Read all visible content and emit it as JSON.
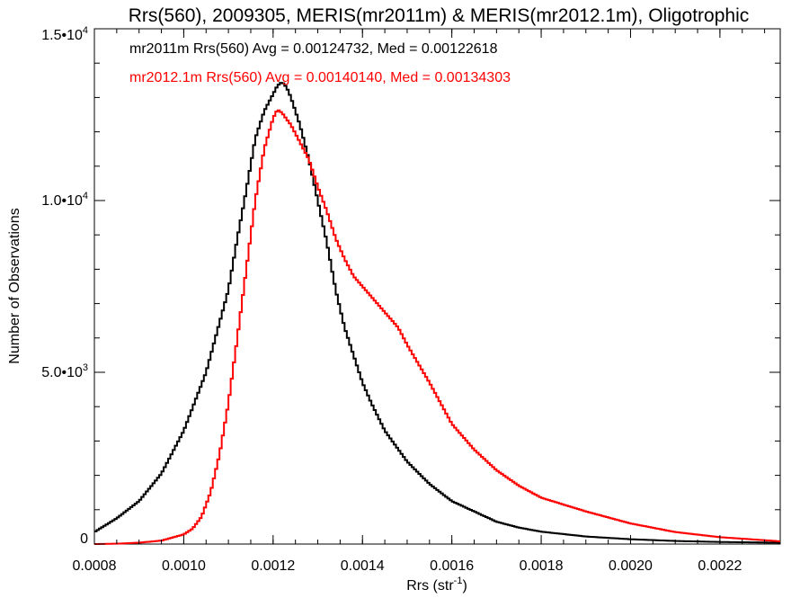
{
  "chart_data": {
    "type": "line",
    "title": "Rrs(560), 2009305, MERIS(mr2011m) & MERIS(mr2012.1m), Oligotrophic",
    "xlabel": "Rrs (str",
    "xlabel_sup": "-1",
    "xlabel_end": ")",
    "ylabel": "Number of Observations",
    "xlim": [
      0.0008,
      0.002335
    ],
    "ylim": [
      0,
      15000
    ],
    "grid": false,
    "x_ticks": [
      {
        "value": 0.0008,
        "label": "0.0008"
      },
      {
        "value": 0.001,
        "label": "0.0010"
      },
      {
        "value": 0.0012,
        "label": "0.0012"
      },
      {
        "value": 0.0014,
        "label": "0.0014"
      },
      {
        "value": 0.0016,
        "label": "0.0016"
      },
      {
        "value": 0.0018,
        "label": "0.0018"
      },
      {
        "value": 0.002,
        "label": "0.0020"
      },
      {
        "value": 0.0022,
        "label": "0.0022"
      }
    ],
    "y_ticks": [
      {
        "value": 0,
        "label": "0",
        "sup": ""
      },
      {
        "value": 5000,
        "label": "5.0•10",
        "sup": "3"
      },
      {
        "value": 10000,
        "label": "1.0•10",
        "sup": "4"
      },
      {
        "value": 15000,
        "label": "1.5•10",
        "sup": "4"
      }
    ],
    "annotations": [
      {
        "text": "mr2011m Rrs(560) Avg = 0.00124732, Med = 0.00122618",
        "color": "#000000"
      },
      {
        "text": "mr2012.1m Rrs(560) Avg = 0.00140140, Med = 0.00134303",
        "color": "#ff0000"
      }
    ],
    "series": [
      {
        "color": "#000000",
        "x": [
          0.0008,
          0.00085,
          0.0009,
          0.00095,
          0.001,
          0.00105,
          0.0011,
          0.00112,
          0.00114,
          0.00116,
          0.00118,
          0.0012,
          0.00121,
          0.00122,
          0.00123,
          0.00124,
          0.00126,
          0.00128,
          0.0013,
          0.00132,
          0.00134,
          0.00136,
          0.00138,
          0.0014,
          0.00142,
          0.00145,
          0.0015,
          0.00155,
          0.0016,
          0.00165,
          0.0017,
          0.00175,
          0.0018,
          0.0019,
          0.002,
          0.0021,
          0.0022,
          0.002335
        ],
        "y": [
          350,
          750,
          1250,
          2050,
          3300,
          5000,
          7400,
          8900,
          10300,
          11800,
          12600,
          13100,
          13350,
          13450,
          13300,
          13000,
          12200,
          11200,
          10000,
          8800,
          7400,
          6300,
          5500,
          4700,
          4100,
          3300,
          2400,
          1750,
          1250,
          950,
          650,
          480,
          360,
          220,
          140,
          90,
          60,
          40
        ]
      },
      {
        "color": "#ff0000",
        "x": [
          0.0008,
          0.00085,
          0.0009,
          0.00095,
          0.001,
          0.00102,
          0.00104,
          0.00106,
          0.00108,
          0.0011,
          0.00112,
          0.00114,
          0.00116,
          0.00118,
          0.0012,
          0.00121,
          0.00122,
          0.00124,
          0.00126,
          0.00128,
          0.0013,
          0.00132,
          0.00134,
          0.00136,
          0.00138,
          0.0014,
          0.00142,
          0.00144,
          0.00146,
          0.00148,
          0.0015,
          0.00155,
          0.0016,
          0.00165,
          0.0017,
          0.00175,
          0.0018,
          0.0019,
          0.002,
          0.0021,
          0.0022,
          0.002335
        ],
        "y": [
          0,
          10,
          40,
          100,
          280,
          450,
          800,
          1500,
          2600,
          4100,
          6000,
          8000,
          10000,
          11500,
          12400,
          12650,
          12550,
          12200,
          11700,
          11200,
          10400,
          9700,
          8900,
          8300,
          7800,
          7500,
          7200,
          6900,
          6600,
          6300,
          5800,
          4700,
          3500,
          2750,
          2150,
          1700,
          1350,
          950,
          600,
          350,
          200,
          80
        ]
      }
    ]
  }
}
